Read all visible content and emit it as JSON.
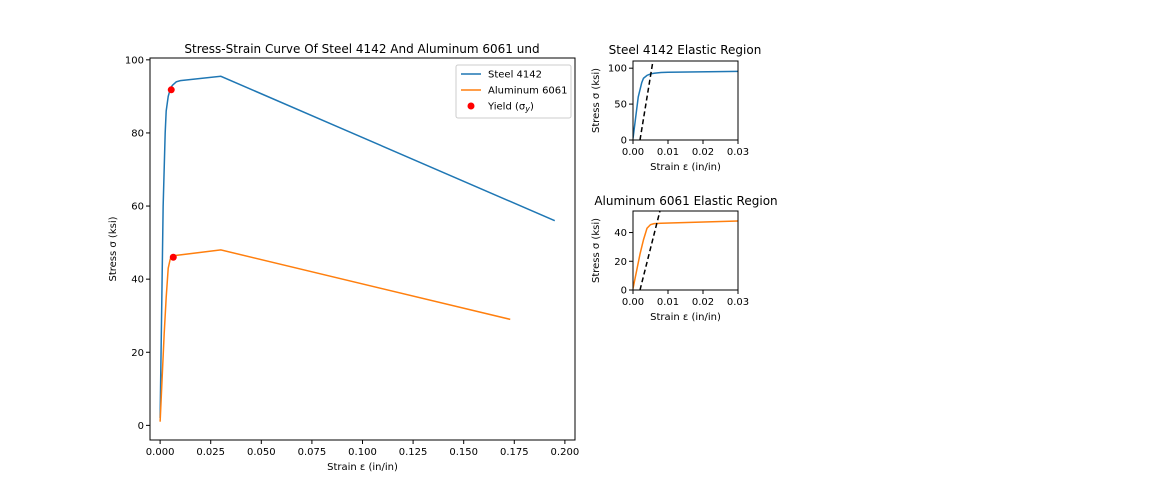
{
  "colors": {
    "steel": "#1f77b4",
    "aluminum": "#ff7f0e",
    "yield": "#ff0000",
    "modulus_line": "#000000"
  },
  "chart_data": [
    {
      "id": "main",
      "type": "line",
      "title": "Stress-Strain Curve Of Steel 4142 And Aluminum 6061 und",
      "xlabel": "Strain ε (in/in)",
      "ylabel": "Stress σ (ksi)",
      "xlim": [
        -0.005,
        0.205
      ],
      "ylim": [
        -4,
        100.5
      ],
      "xticks": [
        0.0,
        0.025,
        0.05,
        0.075,
        0.1,
        0.125,
        0.15,
        0.175,
        0.2
      ],
      "xtick_labels": [
        "0.000",
        "0.025",
        "0.050",
        "0.075",
        "0.100",
        "0.125",
        "0.150",
        "0.175",
        "0.200"
      ],
      "yticks": [
        0,
        20,
        40,
        60,
        80,
        100
      ],
      "ytick_labels": [
        "0",
        "20",
        "40",
        "60",
        "80",
        "100"
      ],
      "legend_position": "top-right",
      "legend": [
        {
          "label": "Steel 4142",
          "kind": "line",
          "color": "#1f77b4"
        },
        {
          "label": "Aluminum 6061",
          "kind": "line",
          "color": "#ff7f0e"
        },
        {
          "label": "Yield (σ",
          "sub": "y",
          "suffix": ")",
          "kind": "point",
          "color": "#ff0000"
        }
      ],
      "series": [
        {
          "name": "Steel 4142",
          "color": "#1f77b4",
          "x": [
            0.0,
            0.0015,
            0.0025,
            0.003,
            0.004,
            0.005,
            0.006,
            0.008,
            0.01,
            0.03,
            0.195
          ],
          "y": [
            2,
            60,
            80,
            86,
            90,
            92,
            93,
            94,
            94.3,
            95.5,
            56
          ]
        },
        {
          "name": "Aluminum 6061",
          "color": "#ff7f0e",
          "x": [
            0.0,
            0.002,
            0.003,
            0.004,
            0.005,
            0.006,
            0.008,
            0.03,
            0.173
          ],
          "y": [
            1,
            25,
            35,
            43,
            45.5,
            46.2,
            46.5,
            48,
            29
          ]
        }
      ],
      "points": [
        {
          "x": 0.0055,
          "y": 91.8,
          "color": "#ff0000"
        },
        {
          "x": 0.0065,
          "y": 46,
          "color": "#ff0000"
        }
      ]
    },
    {
      "id": "steel-inset",
      "type": "line",
      "title": "Steel 4142 Elastic Region",
      "xlabel": "Strain ε (in/in)",
      "ylabel": "Stress σ (ksi)",
      "xlim": [
        0.0,
        0.03
      ],
      "ylim": [
        0,
        110
      ],
      "xticks": [
        0.0,
        0.01,
        0.02,
        0.03
      ],
      "xtick_labels": [
        "0.00",
        "0.01",
        "0.02",
        "0.03"
      ],
      "yticks": [
        0,
        50,
        100
      ],
      "ytick_labels": [
        "0",
        "50",
        "100"
      ],
      "series": [
        {
          "name": "Steel 4142",
          "color": "#1f77b4",
          "x": [
            0.0,
            0.0015,
            0.0025,
            0.003,
            0.004,
            0.005,
            0.006,
            0.008,
            0.01,
            0.03
          ],
          "y": [
            2,
            60,
            80,
            86,
            90,
            92,
            93,
            94,
            94.3,
            95.5
          ]
        }
      ],
      "dashed": {
        "x": [
          0.002,
          0.0057
        ],
        "y": [
          0,
          110
        ],
        "color": "#000000"
      }
    },
    {
      "id": "aluminum-inset",
      "type": "line",
      "title": "Aluminum 6061 Elastic Region",
      "xlabel": "Strain ε (in/in)",
      "ylabel": "Stress σ (ksi)",
      "xlim": [
        0.0,
        0.03
      ],
      "ylim": [
        0,
        55
      ],
      "xticks": [
        0.0,
        0.01,
        0.02,
        0.03
      ],
      "xtick_labels": [
        "0.00",
        "0.01",
        "0.02",
        "0.03"
      ],
      "yticks": [
        0,
        20,
        40
      ],
      "ytick_labels": [
        "0",
        "20",
        "40"
      ],
      "series": [
        {
          "name": "Aluminum 6061",
          "color": "#ff7f0e",
          "x": [
            0.0,
            0.002,
            0.003,
            0.004,
            0.005,
            0.006,
            0.008,
            0.03
          ],
          "y": [
            1,
            25,
            35,
            43,
            45.5,
            46.2,
            46.5,
            48
          ]
        }
      ],
      "dashed": {
        "x": [
          0.002,
          0.0077
        ],
        "y": [
          0,
          55
        ],
        "color": "#000000"
      }
    }
  ]
}
